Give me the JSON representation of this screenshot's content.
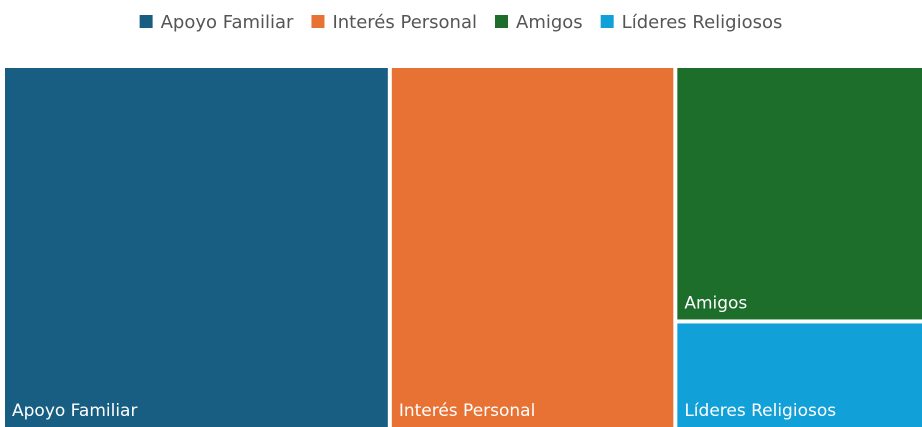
{
  "chart_data": {
    "type": "treemap",
    "categories": [
      "Apoyo Familiar",
      "Interés Personal",
      "Amigos",
      "Líderes Religiosos"
    ],
    "values": [
      42,
      31,
      19,
      8
    ],
    "colors": [
      "#175e82",
      "#e87234",
      "#1c6e2a",
      "#12a0d8"
    ],
    "legend": "top"
  }
}
